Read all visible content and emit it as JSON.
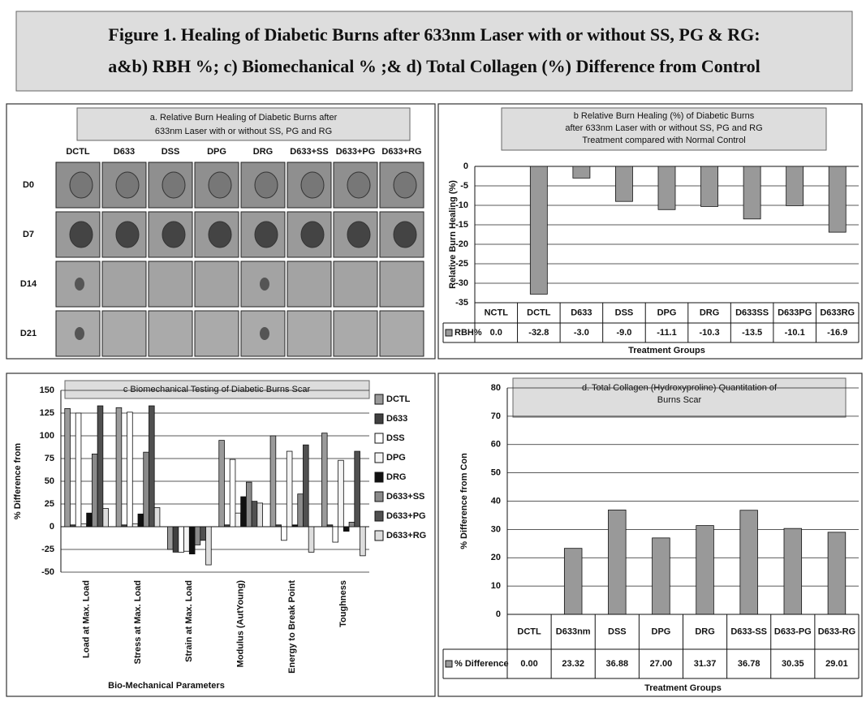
{
  "figure_title": [
    "Figure 1. Healing of Diabetic Burns after 633nm Laser with or without SS, PG & RG:",
    "a&b) RBH %;  c) Biomechanical % ;& d) Total Collagen (%) Difference from Control"
  ],
  "panel_a": {
    "title": [
      "a.  Relative Burn Healing of Diabetic Burns after",
      "633nm Laser with or without SS, PG and RG"
    ],
    "columns": [
      "DCTL",
      "D633",
      "DSS",
      "DPG",
      "DRG",
      "D633+SS",
      "D633+PG",
      "D633+RG"
    ],
    "rows": [
      "D0",
      "D7",
      "D14",
      "D21"
    ]
  },
  "chart_data": [
    {
      "type": "bar",
      "title": [
        "b  Relative Burn Healing (%) of Diabetic Burns",
        "after 633nm Laser with or without SS, PG and RG",
        "Treatment compared with Normal Control"
      ],
      "ylabel": "Relative Burn Healing (%)",
      "xlabel": "Treatment Groups",
      "categories": [
        "NCTL",
        "DCTL",
        "D633",
        "DSS",
        "DPG",
        "DRG",
        "D633SS",
        "D633PG",
        "D633RG"
      ],
      "series": [
        {
          "name": "RBH%",
          "color": "#999999",
          "values": [
            0,
            -32.8,
            -3,
            -9,
            -11.1,
            -10.3,
            -13.5,
            -10.1,
            -16.9
          ],
          "value_labels": [
            "0.0",
            "-32.8",
            "-3.0",
            "-9.0",
            "-11.1",
            "-10.3",
            "-13.5",
            "-10.1",
            "-16.9"
          ]
        }
      ],
      "ylim": [
        -35,
        0
      ],
      "yticks": [
        0,
        -5,
        -10,
        -15,
        -20,
        -25,
        -30,
        -35
      ],
      "grid": true
    },
    {
      "type": "bar",
      "title": [
        "c  Biomechanical Testing  of Diabetic Burns Scar"
      ],
      "ylabel": "% Difference from",
      "xlabel": "Bio-Mechanical Parameters",
      "categories": [
        "Load at Max. Load",
        "Stress at Max. Load",
        "Strain at Max. Load",
        "Modulus (AutYoung)",
        "Energy to Break Point",
        "Toughness"
      ],
      "series": [
        {
          "name": "DCTL",
          "color": "#9a9a9a",
          "values": [
            130,
            131,
            -25,
            95,
            100,
            103
          ]
        },
        {
          "name": "D633",
          "color": "#404040",
          "values": [
            2,
            2,
            -28,
            2,
            2,
            2
          ]
        },
        {
          "name": "DSS",
          "color": "#ffffff",
          "values": [
            125,
            126,
            -28,
            74,
            -15,
            -17
          ]
        },
        {
          "name": "DPG",
          "color": "#f4f4f4",
          "values": [
            3,
            3,
            -27,
            15,
            83,
            73
          ]
        },
        {
          "name": "DRG",
          "color": "#111111",
          "values": [
            15,
            14,
            -30,
            33,
            2,
            -5
          ]
        },
        {
          "name": "D633+SS",
          "color": "#8a8a8a",
          "values": [
            80,
            82,
            -20,
            49,
            36,
            5
          ]
        },
        {
          "name": "D633+PG",
          "color": "#505050",
          "values": [
            133,
            133,
            -15,
            28,
            90,
            83
          ]
        },
        {
          "name": "D633+RG",
          "color": "#dddddd",
          "values": [
            20,
            21,
            -42,
            26,
            -28,
            -32
          ]
        }
      ],
      "ylim": [
        -50,
        150
      ],
      "yticks": [
        -50,
        -25,
        0,
        25,
        50,
        75,
        100,
        125,
        150
      ],
      "grid": true
    },
    {
      "type": "bar",
      "title": [
        "d.  Total Collagen (Hydroxyproline) Quantitation of",
        "Burns Scar"
      ],
      "ylabel": "% Difference from Con",
      "xlabel": "Treatment Groups",
      "categories": [
        "DCTL",
        "D633nm",
        "DSS",
        "DPG",
        "DRG",
        "D633-SS",
        "D633-PG",
        "D633-RG"
      ],
      "series": [
        {
          "name": "% Difference",
          "color": "#999999",
          "values": [
            0,
            23.32,
            36.88,
            27,
            31.37,
            36.78,
            30.35,
            29.01
          ],
          "value_labels": [
            "0.00",
            "23.32",
            "36.88",
            "27.00",
            "31.37",
            "36.78",
            "30.35",
            "29.01"
          ]
        }
      ],
      "ylim": [
        0,
        80
      ],
      "yticks": [
        0,
        10,
        20,
        30,
        40,
        50,
        60,
        70,
        80
      ],
      "grid": true
    }
  ]
}
